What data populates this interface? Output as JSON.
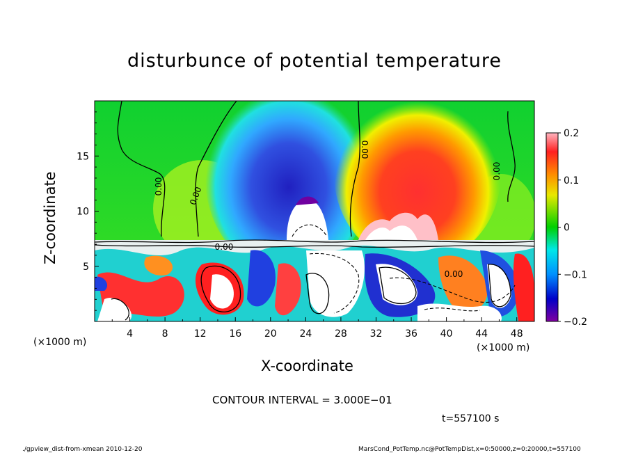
{
  "chart_data": {
    "type": "heatmap",
    "title": "disturbunce of potential temperature",
    "xlabel": "X-coordinate",
    "ylabel": "Z-coordinate",
    "x_unit_left": "(×1000 m)",
    "x_unit_right": "(×1000 m)",
    "x_ticks": [
      "4",
      "8",
      "12",
      "16",
      "20",
      "24",
      "28",
      "32",
      "36",
      "40",
      "44",
      "48"
    ],
    "y_ticks": [
      "5",
      "10",
      "15"
    ],
    "xlim": [
      0,
      50
    ],
    "ylim": [
      0,
      20
    ],
    "colorbar": {
      "ticks": [
        "0.2",
        "0.1",
        "0",
        "−0.1",
        "−0.2"
      ],
      "range": [
        -0.2,
        0.2
      ]
    },
    "contour_labels": [
      "0.00",
      "0.00",
      "0.00",
      "0.00",
      "0.00",
      "0.00"
    ],
    "contour_interval": "CONTOUR INTERVAL = 3.000E−01",
    "time": "t=557100 s"
  },
  "footer": {
    "left": "./gpview_dist-from-xmean  2010-12-20",
    "right": "MarsCond_PotTemp.nc@PotTempDist,x=0:50000,z=0:20000,t=557100"
  }
}
